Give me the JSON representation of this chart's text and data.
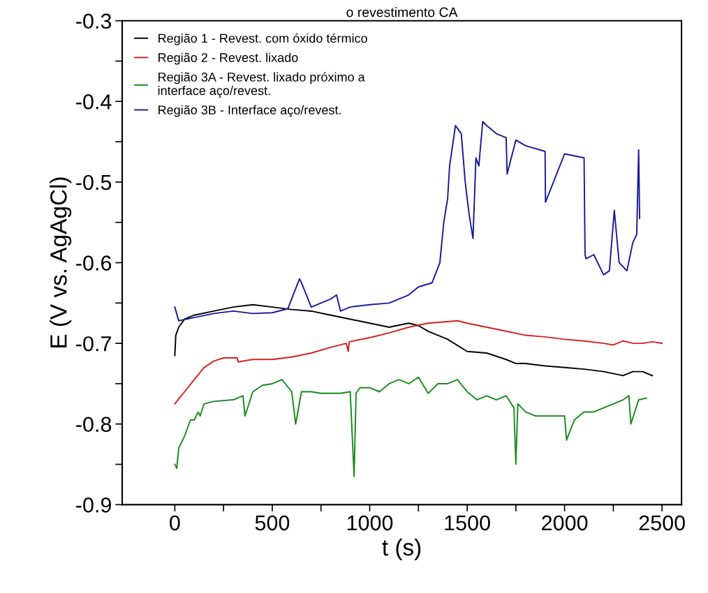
{
  "chart_data": {
    "type": "line",
    "title": "o revestimento CA",
    "xlabel": "t (s)",
    "ylabel": "E (V vs. AgAgCl)",
    "xlim": [
      -270,
      2600
    ],
    "ylim": [
      -0.9,
      -0.3
    ],
    "xticks": [
      0,
      {
        "value": 250,
        "label": null
      },
      500,
      {
        "value": 750,
        "label": null
      },
      1000,
      {
        "value": 1250,
        "label": null
      },
      1500,
      {
        "value": 1750,
        "label": null
      },
      2000,
      {
        "value": 2250,
        "label": null
      },
      2500
    ],
    "yticks": [
      -0.9,
      {
        "value": -0.85,
        "label": null
      },
      -0.8,
      {
        "value": -0.75,
        "label": null
      },
      -0.7,
      {
        "value": -0.65,
        "label": null
      },
      -0.6,
      {
        "value": -0.55,
        "label": null
      },
      -0.5,
      {
        "value": -0.45,
        "label": null
      },
      -0.4,
      {
        "value": -0.35,
        "label": null
      },
      -0.3
    ],
    "grid": false,
    "legend": "top left",
    "marker": "none",
    "line_style": "solid",
    "series": [
      {
        "name": "Região 1 - Revest. com óxido térmico",
        "color": "#000000",
        "x": [
          0,
          5,
          20,
          50,
          100,
          200,
          300,
          400,
          500,
          600,
          700,
          800,
          900,
          1000,
          1100,
          1200,
          1250,
          1300,
          1400,
          1500,
          1600,
          1700,
          1750,
          1800,
          1900,
          2000,
          2100,
          2200,
          2300,
          2350,
          2400,
          2450
        ],
        "values": [
          -0.715,
          -0.69,
          -0.68,
          -0.67,
          -0.665,
          -0.66,
          -0.655,
          -0.652,
          -0.655,
          -0.658,
          -0.66,
          -0.665,
          -0.67,
          -0.675,
          -0.68,
          -0.675,
          -0.678,
          -0.685,
          -0.695,
          -0.71,
          -0.712,
          -0.72,
          -0.725,
          -0.725,
          -0.728,
          -0.73,
          -0.732,
          -0.735,
          -0.74,
          -0.735,
          -0.735,
          -0.74
        ]
      },
      {
        "name": "Região 2 - Revest. lixado",
        "color": "#d42020",
        "x": [
          0,
          50,
          100,
          150,
          200,
          250,
          300,
          320,
          325,
          400,
          500,
          600,
          700,
          800,
          880,
          890,
          895,
          1000,
          1100,
          1200,
          1300,
          1400,
          1450,
          1500,
          1600,
          1700,
          1800,
          1900,
          2000,
          2100,
          2200,
          2250,
          2300,
          2350,
          2400,
          2450,
          2500
        ],
        "values": [
          -0.775,
          -0.76,
          -0.745,
          -0.73,
          -0.722,
          -0.718,
          -0.718,
          -0.718,
          -0.723,
          -0.72,
          -0.72,
          -0.717,
          -0.712,
          -0.705,
          -0.7,
          -0.71,
          -0.698,
          -0.693,
          -0.687,
          -0.68,
          -0.675,
          -0.673,
          -0.672,
          -0.675,
          -0.68,
          -0.685,
          -0.69,
          -0.692,
          -0.695,
          -0.697,
          -0.7,
          -0.702,
          -0.697,
          -0.7,
          -0.7,
          -0.698,
          -0.7
        ]
      },
      {
        "name": "Região 3A - Revest. lixado próximo a\ninterface aço/revest.",
        "color": "#1a8a1a",
        "x": [
          0,
          10,
          20,
          50,
          80,
          100,
          120,
          130,
          150,
          200,
          300,
          350,
          360,
          400,
          450,
          500,
          550,
          600,
          620,
          650,
          660,
          700,
          750,
          800,
          850,
          900,
          920,
          930,
          950,
          1000,
          1050,
          1100,
          1150,
          1200,
          1250,
          1300,
          1350,
          1400,
          1450,
          1500,
          1550,
          1600,
          1650,
          1700,
          1740,
          1750,
          1760,
          1800,
          1850,
          1900,
          2000,
          2010,
          2050,
          2100,
          2150,
          2200,
          2250,
          2300,
          2330,
          2340,
          2380,
          2420
        ],
        "values": [
          -0.85,
          -0.855,
          -0.83,
          -0.815,
          -0.795,
          -0.795,
          -0.785,
          -0.79,
          -0.775,
          -0.772,
          -0.77,
          -0.765,
          -0.79,
          -0.76,
          -0.752,
          -0.75,
          -0.745,
          -0.76,
          -0.8,
          -0.76,
          -0.76,
          -0.76,
          -0.762,
          -0.762,
          -0.762,
          -0.76,
          -0.865,
          -0.762,
          -0.755,
          -0.755,
          -0.76,
          -0.75,
          -0.745,
          -0.75,
          -0.742,
          -0.762,
          -0.75,
          -0.75,
          -0.745,
          -0.76,
          -0.77,
          -0.765,
          -0.77,
          -0.765,
          -0.78,
          -0.85,
          -0.775,
          -0.785,
          -0.79,
          -0.79,
          -0.79,
          -0.82,
          -0.795,
          -0.785,
          -0.785,
          -0.78,
          -0.775,
          -0.77,
          -0.765,
          -0.8,
          -0.77,
          -0.768
        ]
      },
      {
        "name": "Região 3B - Interface aço/revest.",
        "color": "#1a1a9a",
        "x": [
          0,
          20,
          100,
          200,
          300,
          400,
          500,
          580,
          640,
          650,
          700,
          800,
          830,
          850,
          900,
          1000,
          1100,
          1200,
          1250,
          1320,
          1360,
          1380,
          1400,
          1410,
          1440,
          1470,
          1490,
          1510,
          1530,
          1545,
          1560,
          1580,
          1600,
          1650,
          1700,
          1705,
          1750,
          1800,
          1900,
          1902,
          2000,
          2100,
          2105,
          2110,
          2150,
          2200,
          2230,
          2255,
          2280,
          2300,
          2320,
          2350,
          2370,
          2380,
          2385
        ],
        "values": [
          -0.655,
          -0.672,
          -0.668,
          -0.663,
          -0.66,
          -0.663,
          -0.662,
          -0.657,
          -0.62,
          -0.625,
          -0.655,
          -0.645,
          -0.64,
          -0.66,
          -0.655,
          -0.652,
          -0.65,
          -0.64,
          -0.63,
          -0.625,
          -0.6,
          -0.55,
          -0.52,
          -0.48,
          -0.43,
          -0.44,
          -0.5,
          -0.54,
          -0.57,
          -0.47,
          -0.48,
          -0.425,
          -0.43,
          -0.44,
          -0.445,
          -0.49,
          -0.448,
          -0.455,
          -0.462,
          -0.525,
          -0.465,
          -0.47,
          -0.59,
          -0.595,
          -0.59,
          -0.615,
          -0.61,
          -0.535,
          -0.6,
          -0.605,
          -0.61,
          -0.575,
          -0.565,
          -0.46,
          -0.545
        ]
      }
    ]
  }
}
